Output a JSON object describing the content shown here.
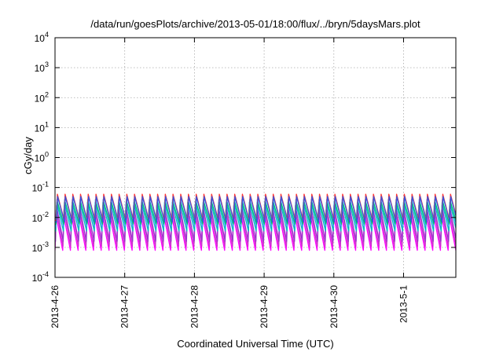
{
  "chart_data": {
    "type": "line",
    "title": "/data/run/goesPlots/archive/2013-05-01/18:00/flux/../bryn/5daysMars.plot",
    "xlabel": "Coordinated Universal Time (UTC)",
    "ylabel": "cGy/day",
    "y_scale": "log",
    "ylim": [
      0.0001,
      10000
    ],
    "y_ticks": [
      {
        "value": 0.0001,
        "base": "10",
        "exp": "-4"
      },
      {
        "value": 0.001,
        "base": "10",
        "exp": "-3"
      },
      {
        "value": 0.01,
        "base": "10",
        "exp": "-2"
      },
      {
        "value": 0.1,
        "base": "10",
        "exp": "-1"
      },
      {
        "value": 1,
        "base": "10",
        "exp": "0"
      },
      {
        "value": 10,
        "base": "10",
        "exp": "1"
      },
      {
        "value": 100,
        "base": "10",
        "exp": "2"
      },
      {
        "value": 1000,
        "base": "10",
        "exp": "3"
      },
      {
        "value": 10000,
        "base": "10",
        "exp": "4"
      }
    ],
    "x_range": [
      "2013-04-26T00:00",
      "2013-05-01T18:00"
    ],
    "x_ticks": [
      "2013-4-26",
      "2013-4-27",
      "2013-4-28",
      "2013-4-29",
      "2013-4-30",
      "2013-5-1"
    ],
    "grid": true,
    "pattern": {
      "cycles_per_day": 9,
      "description": "sawtooth spikes"
    },
    "series": [
      {
        "color": "#ff00ff",
        "peak": 0.012,
        "trough": 0.0008
      },
      {
        "color": "#cc33cc",
        "peak": 0.018,
        "trough": 0.0011
      },
      {
        "color": "#9933cc",
        "peak": 0.025,
        "trough": 0.0016
      },
      {
        "color": "#00bfbf",
        "peak": 0.032,
        "trough": 0.0035
      },
      {
        "color": "#3399ff",
        "peak": 0.04,
        "trough": 0.005
      },
      {
        "color": "#00cc66",
        "peak": 0.035,
        "trough": 0.006
      },
      {
        "color": "#ff3333",
        "peak": 0.06,
        "trough": 0.008
      },
      {
        "color": "#3355dd",
        "peak": 0.05,
        "trough": 0.007
      }
    ]
  }
}
